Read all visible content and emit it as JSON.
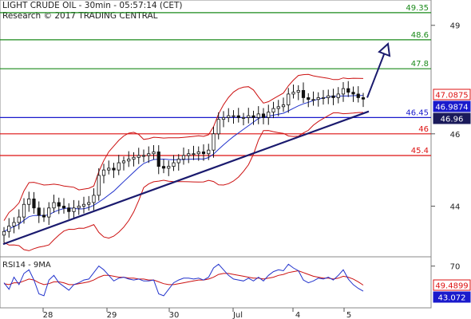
{
  "header": {
    "title": "LIGHT CRUDE OIL - 30min - 05:57:14 (CET)",
    "subtitle": "Research © 2017 TRADING CENTRAL"
  },
  "colors": {
    "candle": "#111111",
    "bollinger": "#cc1111",
    "moving_average": "#2233cc",
    "trendline": "#1a1a6e",
    "arrow": "#1a1a6e",
    "resistance": "#1a8a1a",
    "pivot": "#1a1acc",
    "support": "#dd1111",
    "rsi_line": "#2233cc",
    "rsi_signal": "#cc1111",
    "price_box_red": "#dd1111",
    "price_box_blue": "#1a1acc",
    "price_box_dark": "#1a1a5a"
  },
  "chart_data": [
    {
      "type": "candlestick",
      "title": "LIGHT CRUDE OIL - 30min",
      "x_tick_labels": [
        "28",
        "29",
        "30",
        "Jul",
        "4",
        "5"
      ],
      "y_tick_labels": [
        "44",
        "46",
        "49"
      ],
      "ylim": [
        42.6,
        49.7
      ],
      "levels": [
        {
          "value": 49.35,
          "label": "49.35",
          "kind": "resistance"
        },
        {
          "value": 48.6,
          "label": "48.6",
          "kind": "resistance"
        },
        {
          "value": 47.8,
          "label": "47.8",
          "kind": "resistance"
        },
        {
          "value": 46.45,
          "label": "46.45",
          "kind": "pivot"
        },
        {
          "value": 46,
          "label": "46",
          "kind": "support"
        },
        {
          "value": 45.4,
          "label": "45.4",
          "kind": "support"
        }
      ],
      "price_boxes": [
        {
          "value": 47.0875,
          "label": "47.0875",
          "style": "red-outline"
        },
        {
          "value": 46.9874,
          "label": "46.9874",
          "style": "blue-fill"
        },
        {
          "value": 46.96,
          "label": "46.96",
          "style": "dark-fill"
        }
      ],
      "series": [
        {
          "kind": "ohlc",
          "close": [
            43.3,
            43.45,
            43.55,
            43.7,
            44.05,
            44.2,
            43.95,
            43.75,
            43.7,
            43.95,
            44.1,
            44.0,
            43.95,
            43.85,
            43.95,
            44.0,
            44.05,
            44.1,
            44.3,
            44.85,
            45.0,
            45.05,
            45.0,
            45.2,
            45.25,
            45.3,
            45.35,
            45.4,
            45.4,
            45.45,
            45.5,
            45.1,
            45.05,
            45.1,
            45.2,
            45.3,
            45.4,
            45.45,
            45.45,
            45.5,
            45.45,
            45.55,
            46.0,
            46.4,
            46.45,
            46.5,
            46.5,
            46.45,
            46.45,
            46.5,
            46.45,
            46.55,
            46.45,
            46.6,
            46.7,
            46.75,
            46.8,
            47.1,
            47.15,
            47.2,
            47.0,
            46.95,
            46.95,
            47.0,
            47.0,
            47.05,
            47.0,
            47.1,
            47.25,
            47.15,
            47.1,
            47.0,
            46.96
          ]
        }
      ]
    },
    {
      "type": "line",
      "title": "RSI14 - 9MA",
      "y_tick_labels": [
        "70"
      ],
      "ylim": [
        25,
        80
      ],
      "price_boxes": [
        {
          "value": 49.4899,
          "label": "49.4899",
          "style": "red-outline"
        },
        {
          "value": 43.072,
          "label": "43.072",
          "style": "blue-fill"
        }
      ],
      "series": [
        {
          "name": "RSI14",
          "values": [
            52,
            45,
            58,
            50,
            62,
            66,
            55,
            40,
            38,
            55,
            60,
            52,
            48,
            44,
            50,
            52,
            55,
            56,
            63,
            70,
            66,
            60,
            54,
            57,
            58,
            56,
            55,
            56,
            54,
            54,
            55,
            40,
            38,
            45,
            52,
            55,
            57,
            57,
            56,
            57,
            55,
            58,
            68,
            72,
            66,
            60,
            56,
            55,
            54,
            57,
            54,
            58,
            54,
            60,
            64,
            66,
            65,
            72,
            68,
            65,
            55,
            52,
            54,
            57,
            56,
            58,
            55,
            60,
            66,
            56,
            50,
            46,
            43
          ]
        },
        {
          "name": "9MA",
          "values": [
            51,
            50,
            52,
            52,
            54,
            56,
            55,
            52,
            50,
            51,
            53,
            53,
            52,
            50,
            50,
            51,
            52,
            53,
            55,
            58,
            60,
            60,
            59,
            58,
            58,
            57,
            57,
            56,
            56,
            55,
            55,
            53,
            51,
            50,
            50,
            51,
            52,
            53,
            54,
            55,
            55,
            56,
            58,
            61,
            62,
            62,
            61,
            60,
            59,
            58,
            57,
            57,
            56,
            57,
            58,
            60,
            61,
            63,
            64,
            65,
            63,
            61,
            59,
            58,
            57,
            57,
            56,
            57,
            59,
            58,
            56,
            53,
            49.5
          ]
        }
      ]
    }
  ]
}
